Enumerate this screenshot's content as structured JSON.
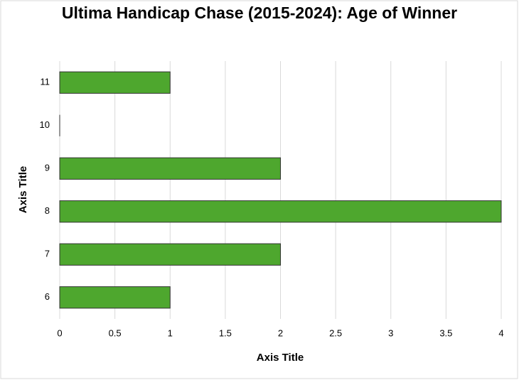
{
  "chart_data": {
    "type": "barh",
    "title": "Ultima Handicap Chase (2015-2024): Age of Winner",
    "x_label": "Axis Title",
    "y_label": "Axis Title",
    "categories": [
      "6",
      "7",
      "8",
      "9",
      "10",
      "11"
    ],
    "values": [
      1,
      2,
      4,
      2,
      0,
      1
    ],
    "color": "#4ea72e",
    "xlim": [
      0,
      4
    ],
    "xticks": [
      0,
      0.5,
      1,
      1.5,
      2,
      2.5,
      3,
      3.5,
      4
    ],
    "grid": true
  }
}
